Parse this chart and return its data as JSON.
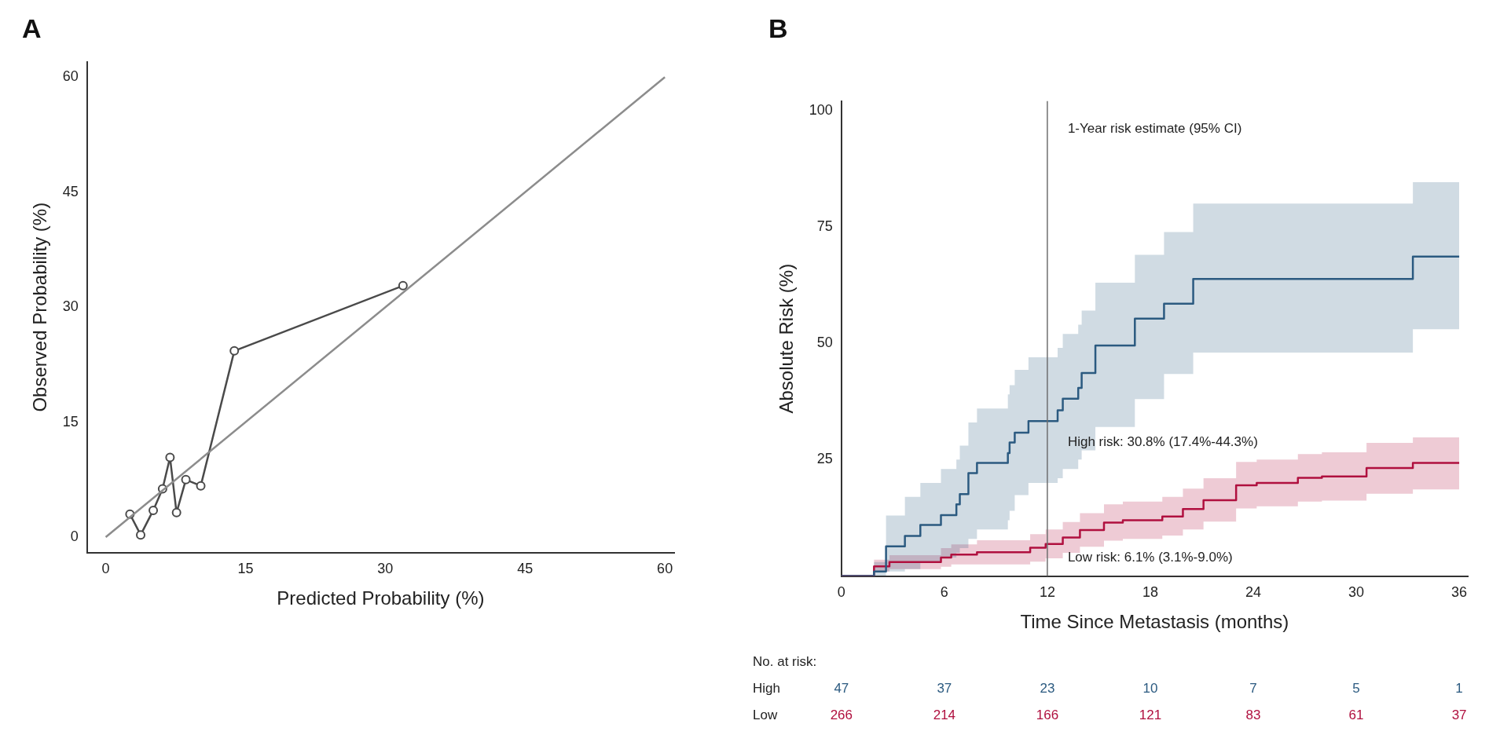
{
  "chart_data": [
    {
      "type": "line",
      "title": "A",
      "xlabel": "Predicted Probability (%)",
      "ylabel": "Observed Probability (%)",
      "xlim": [
        -2,
        61
      ],
      "ylim": [
        -2,
        62
      ],
      "xticks": [
        0,
        15,
        30,
        45,
        60
      ],
      "yticks": [
        0,
        15,
        30,
        45,
        60
      ],
      "grid": false,
      "legend": false,
      "series": [
        {
          "color": "#8c8c8c",
          "marker": "none",
          "x": [
            0,
            60
          ],
          "values": [
            0,
            60
          ]
        },
        {
          "color": "#4a4a4a",
          "marker": "circle",
          "x": [
            2.6,
            3.75,
            5.1,
            6.1,
            6.9,
            7.6,
            8.6,
            10.2,
            13.8,
            31.9
          ],
          "values": [
            3.0,
            0.3,
            3.5,
            6.3,
            10.4,
            3.2,
            7.5,
            6.7,
            24.3,
            32.8
          ]
        }
      ]
    },
    {
      "type": "step",
      "title": "B",
      "xlabel": "Time Since Metastasis (months)",
      "ylabel": "Absolute Risk (%)",
      "xlim": [
        0,
        36.5
      ],
      "ylim": [
        0,
        102
      ],
      "xticks": [
        0,
        6,
        12,
        18,
        24,
        30,
        36
      ],
      "yticks": [
        25,
        50,
        75,
        100
      ],
      "grid": false,
      "legend": false,
      "ref_lines": [
        {
          "axis": "x",
          "value": 12,
          "label": "1-Year risk estimate (95% CI)",
          "color": "#6e6e6e"
        }
      ],
      "annotations": [
        {
          "text": "High risk: 30.8% (17.4%-44.3%)",
          "x": 12,
          "y": 30.8
        },
        {
          "text": "Low risk: 6.1% (3.1%-9.0%)",
          "x": 12,
          "y": 6.1
        },
        "No. at risk:",
        "High",
        "47",
        "37",
        "23",
        "10",
        "7",
        "5",
        "1",
        "Low",
        "266",
        "214",
        "166",
        "121",
        "83",
        "61",
        "37"
      ],
      "series": [
        {
          "color": "#2b5a80",
          "x": [
            0,
            1.9,
            2.6,
            3.7,
            4.6,
            5.8,
            6.7,
            6.9,
            7.4,
            7.9,
            9.7,
            9.8,
            10.1,
            10.9,
            12.6,
            12.9,
            13.8,
            14.0,
            14.8,
            17.1,
            18.8,
            20.5,
            33.3,
            34.2,
            36
          ],
          "values": [
            0,
            0,
            1,
            6.4,
            8.6,
            11.0,
            13.1,
            15.4,
            17.6,
            22.1,
            24.3,
            26.4,
            28.7,
            30.8,
            33.3,
            35.6,
            38.1,
            40.4,
            43.6,
            49.5,
            55.3,
            58.5,
            63.8,
            68.6,
            68.6
          ],
          "lower": [
            0,
            0,
            0,
            1,
            1.5,
            3,
            4,
            5,
            6,
            8,
            10,
            12,
            14,
            17.4,
            20,
            21,
            23,
            25,
            27,
            32,
            38,
            43.4,
            48,
            53,
            53
          ],
          "upper": [
            0,
            0,
            3,
            13,
            17,
            20,
            23,
            25,
            28,
            33,
            36,
            39,
            41,
            44.3,
            47,
            49,
            52,
            54,
            57,
            63,
            69,
            73.9,
            80,
            84.6,
            84.6
          ]
        },
        {
          "color": "#b0103f",
          "x": [
            0,
            1.9,
            2.8,
            5.8,
            6.4,
            7.9,
            11.0,
            11.9,
            12.9,
            13.9,
            15.3,
            16.4,
            18.7,
            19.9,
            21.1,
            23.0,
            24.2,
            26.6,
            28.0,
            30.6,
            33.3,
            33.6,
            36
          ],
          "values": [
            0,
            0,
            2.1,
            3.0,
            4.0,
            4.6,
            5.1,
            6.1,
            6.9,
            8.3,
            9.9,
            11.5,
            12.0,
            12.8,
            14.4,
            16.3,
            19.5,
            20.0,
            21.1,
            21.4,
            23.2,
            24.3,
            24.3
          ],
          "lower": [
            0,
            0,
            1,
            1.5,
            2,
            2.5,
            2.5,
            3.1,
            3.8,
            5,
            6.3,
            7.6,
            8,
            8.7,
            10,
            11.7,
            14.5,
            15,
            16,
            16.2,
            17.7,
            18.6,
            18.6
          ],
          "upper": [
            0,
            0,
            3.5,
            4.5,
            6,
            6.8,
            7.7,
            9.0,
            10,
            11.6,
            13.5,
            15.4,
            16,
            17,
            18.8,
            21,
            24.5,
            25,
            26.2,
            26.6,
            28.6,
            29.8,
            29.8
          ]
        }
      ]
    }
  ]
}
